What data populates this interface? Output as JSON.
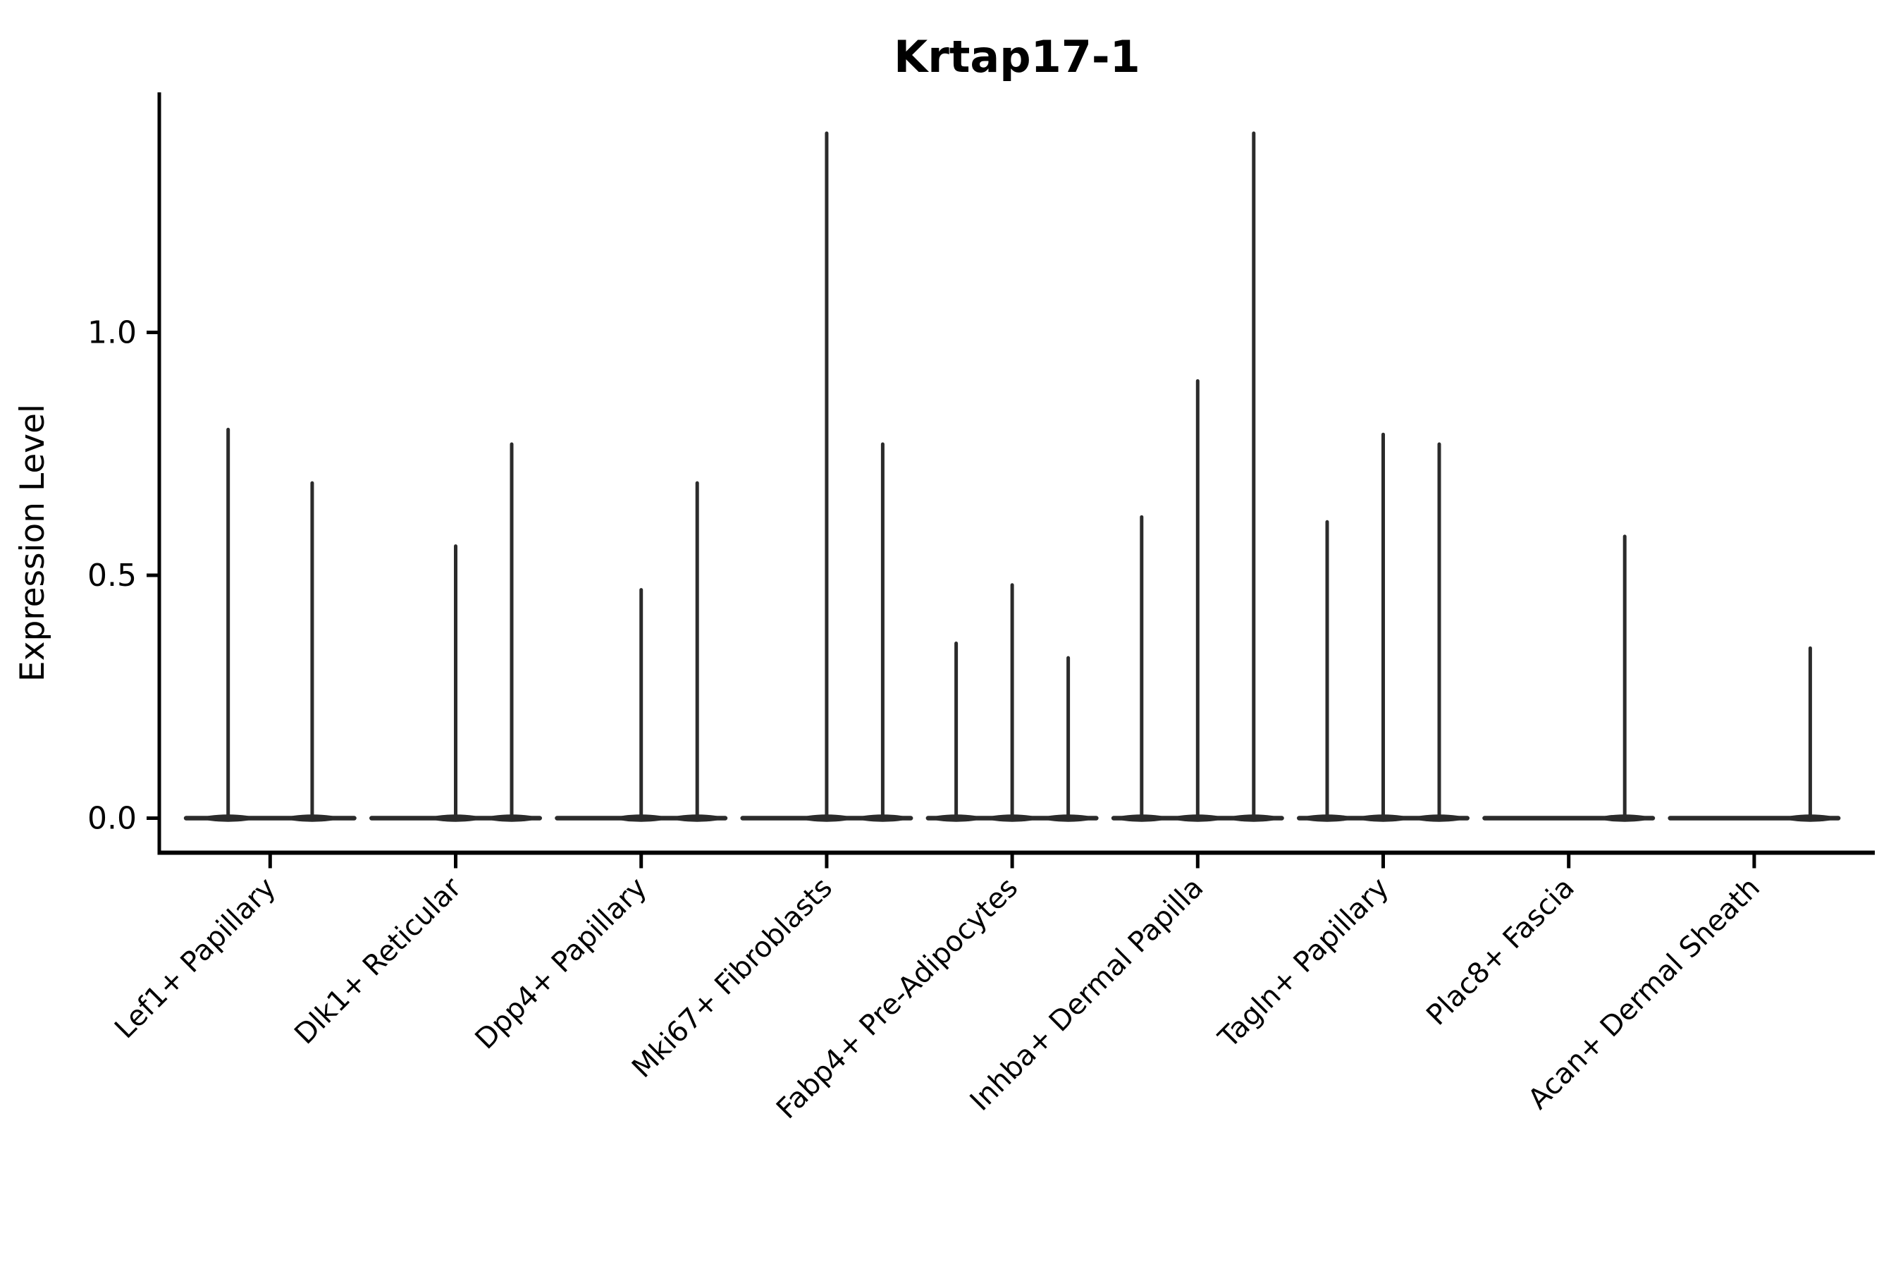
{
  "title": "Krtap17-1",
  "chart_data": {
    "type": "violin",
    "title": "Krtap17-1",
    "xlabel": "",
    "ylabel": "Expression Level",
    "yticks": [
      "0.0",
      "0.5",
      "1.0"
    ],
    "ytick_values": [
      0.0,
      0.5,
      1.0
    ],
    "ylim": [
      0,
      1.45
    ],
    "grid": false,
    "legend": "none",
    "style_note": "thin spike-shaped violins; value 0 means a completely flat violin (all cells zero)",
    "violins": [
      {
        "category": "Lef1+ Papillary",
        "group_maxima": [
          0.8,
          0.69
        ]
      },
      {
        "category": "Dlk1+ Reticular",
        "group_maxima": [
          0,
          0.56,
          0.77
        ]
      },
      {
        "category": "Dpp4+ Papillary",
        "group_maxima": [
          0,
          0.47,
          0.69
        ]
      },
      {
        "category": "Mki67+ Fibroblasts",
        "group_maxima": [
          0,
          1.41,
          0.77
        ]
      },
      {
        "category": "Fabp4+ Pre-Adipocytes",
        "group_maxima": [
          0.36,
          0.48,
          0.33
        ]
      },
      {
        "category": "Inhba+ Dermal Papilla",
        "group_maxima": [
          0.62,
          0.9,
          1.41
        ]
      },
      {
        "category": "Tagln+ Papillary",
        "group_maxima": [
          0.61,
          0.79,
          0.77
        ]
      },
      {
        "category": "Plac8+ Fascia",
        "group_maxima": [
          0,
          0,
          0.58
        ]
      },
      {
        "category": "Acan+ Dermal Sheath",
        "group_maxima": [
          0,
          0,
          0.35
        ]
      }
    ],
    "colors": {
      "violin": "#2b2b2b",
      "axis": "#000000",
      "text": "#000000",
      "background": "#ffffff"
    }
  }
}
